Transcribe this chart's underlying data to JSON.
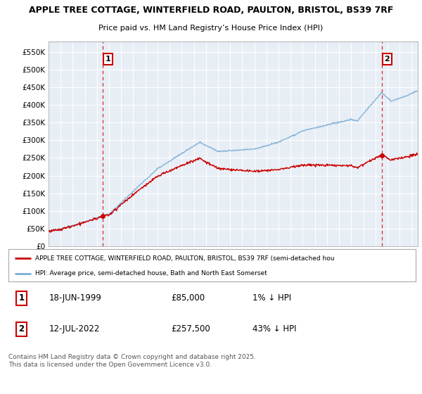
{
  "title_line1": "APPLE TREE COTTAGE, WINTERFIELD ROAD, PAULTON, BRISTOL, BS39 7RF",
  "title_line2": "Price paid vs. HM Land Registry’s House Price Index (HPI)",
  "ylabel_ticks": [
    "£0",
    "£50K",
    "£100K",
    "£150K",
    "£200K",
    "£250K",
    "£300K",
    "£350K",
    "£400K",
    "£450K",
    "£500K",
    "£550K"
  ],
  "ytick_values": [
    0,
    50000,
    100000,
    150000,
    200000,
    250000,
    300000,
    350000,
    400000,
    450000,
    500000,
    550000
  ],
  "ylim": [
    0,
    580000
  ],
  "xlim_start": 1995.0,
  "xlim_end": 2025.5,
  "hpi_color": "#7aaed6",
  "price_color": "#cc0000",
  "marker1_x": 1999.47,
  "marker1_y": 85000,
  "marker2_x": 2022.53,
  "marker2_y": 257500,
  "dashed_color": "#cc0000",
  "annotation1_label": "1",
  "annotation2_label": "2",
  "legend_label1": "APPLE TREE COTTAGE, WINTERFIELD ROAD, PAULTON, BRISTOL, BS39 7RF (semi-detached hou",
  "legend_label2": "HPI: Average price, semi-detached house, Bath and North East Somerset",
  "background_color": "#ffffff",
  "plot_bg_color": "#e8eef5",
  "grid_color": "#ffffff"
}
